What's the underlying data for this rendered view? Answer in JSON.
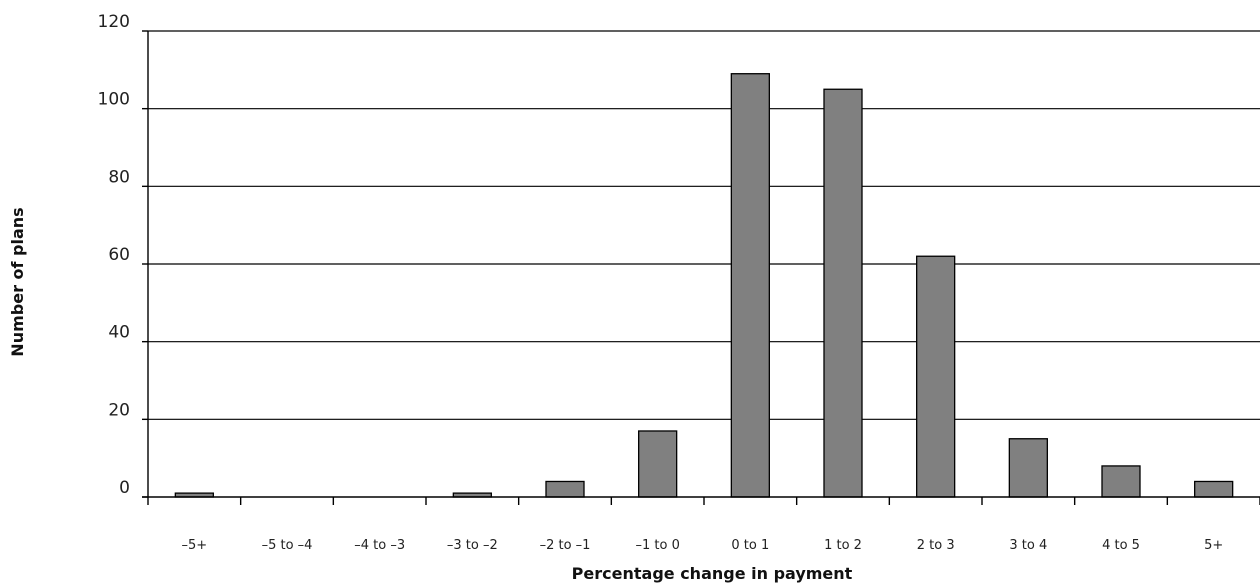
{
  "chart_data": {
    "type": "bar",
    "title": "",
    "xlabel": "Percentage change in payment",
    "ylabel": "Number of plans",
    "categories": [
      "–5+",
      "–5 to –4",
      "–4 to –3",
      "–3 to –2",
      "–2 to –1",
      "–1 to 0",
      "0 to 1",
      "1 to 2",
      "2 to 3",
      "3 to 4",
      "4 to 5",
      "5+"
    ],
    "values": [
      1,
      0,
      0,
      1,
      4,
      17,
      109,
      105,
      62,
      15,
      8,
      4
    ],
    "ylim": [
      0,
      120
    ],
    "yticks": [
      0,
      20,
      40,
      60,
      80,
      100,
      120
    ],
    "grid": true,
    "bar_color": "#808080"
  }
}
